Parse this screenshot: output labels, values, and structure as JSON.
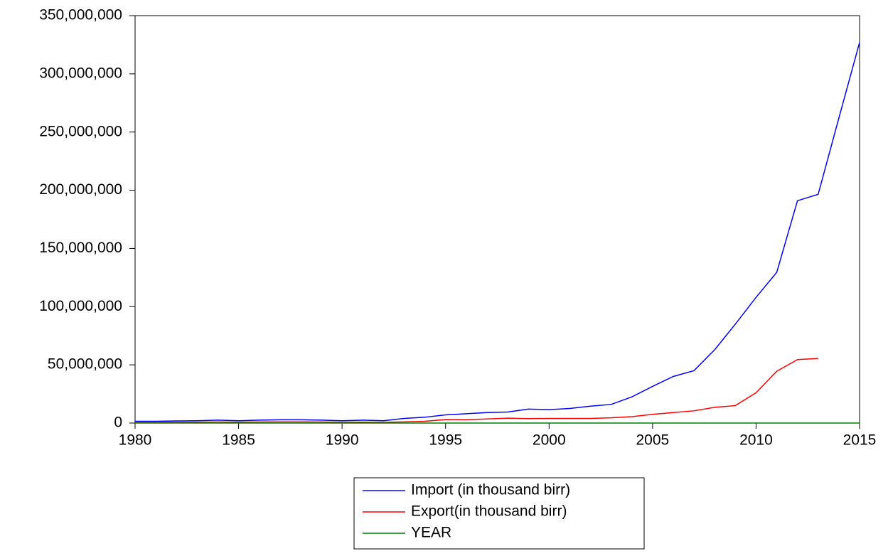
{
  "chart_data": {
    "type": "line",
    "x": [
      1980,
      1981,
      1982,
      1983,
      1984,
      1985,
      1986,
      1987,
      1988,
      1989,
      1990,
      1991,
      1992,
      1993,
      1994,
      1995,
      1996,
      1997,
      1998,
      1999,
      2000,
      2001,
      2002,
      2003,
      2004,
      2005,
      2006,
      2007,
      2008,
      2009,
      2010,
      2011,
      2012,
      2013,
      2014,
      2015
    ],
    "series": [
      {
        "name": "Import (in thousand birr)",
        "color": "#0000ff",
        "values": [
          1500000,
          1500000,
          1800000,
          2000000,
          2500000,
          2000000,
          2500000,
          2800000,
          2800000,
          2500000,
          2000000,
          2500000,
          2000000,
          4000000,
          5000000,
          7000000,
          8000000,
          9000000,
          9500000,
          12000000,
          11500000,
          12500000,
          14500000,
          16000000,
          22500000,
          31500000,
          40000000,
          45000000,
          63000000,
          85000000,
          108000000,
          129500000,
          191000000,
          196500000,
          262000000,
          327000000
        ]
      },
      {
        "name": "Export(in thousand birr)",
        "color": "#ff0000",
        "values": [
          600000,
          600000,
          700000,
          800000,
          900000,
          800000,
          900000,
          1000000,
          1000000,
          900000,
          700000,
          800000,
          600000,
          1000000,
          1500000,
          3000000,
          2800000,
          3500000,
          4200000,
          3800000,
          4000000,
          4000000,
          4000000,
          4500000,
          5500000,
          7500000,
          9000000,
          10500000,
          13500000,
          15000000,
          26000000,
          44500000,
          54500000,
          55500000,
          null,
          null
        ]
      },
      {
        "name": "YEAR",
        "color": "#008000",
        "values": [
          1980,
          1981,
          1982,
          1983,
          1984,
          1985,
          1986,
          1987,
          1988,
          1989,
          1990,
          1991,
          1992,
          1993,
          1994,
          1995,
          1996,
          1997,
          1998,
          1999,
          2000,
          2001,
          2002,
          2003,
          2004,
          2005,
          2006,
          2007,
          2008,
          2009,
          2010,
          2011,
          2012,
          2013,
          2014,
          2015
        ]
      }
    ],
    "xlim": [
      1980,
      2015
    ],
    "xticks": [
      1980,
      1985,
      1990,
      1995,
      2000,
      2005,
      2010,
      2015
    ],
    "ylim": [
      0,
      350000000
    ],
    "yticks": [
      0,
      {
        "value": 50000000,
        "label": "50,000,000"
      },
      {
        "value": 100000000,
        "label": "100,000,000"
      },
      {
        "value": 150000000,
        "label": "150,000,000"
      },
      {
        "value": 200000000,
        "label": "200,000,000"
      },
      {
        "value": 250000000,
        "label": "250,000,000"
      },
      {
        "value": 300000000,
        "label": "300,000,000"
      },
      {
        "value": 350000000,
        "label": "350,000,000"
      }
    ],
    "grid": false,
    "legend": "bottom"
  }
}
